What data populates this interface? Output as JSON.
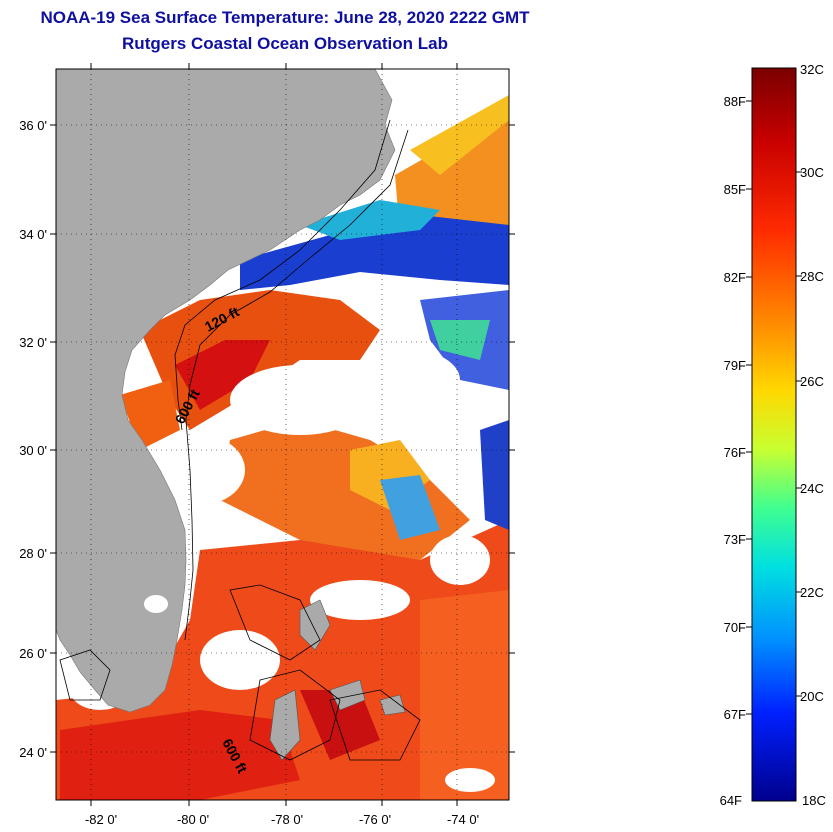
{
  "header": {
    "title": "NOAA-19 Sea Surface Temperature:  June 28, 2020 2222 GMT",
    "subtitle": "Rutgers Coastal Ocean Observation Lab"
  },
  "map": {
    "lat_labels": [
      "36 0'",
      "34 0'",
      "32 0'",
      "30 0'",
      "28 0'",
      "26 0'",
      "24 0'"
    ],
    "lon_labels": [
      "-82 0'",
      "-80 0'",
      "-78 0'",
      "-76 0'",
      "-74 0'"
    ],
    "contour_labels": [
      "120 ft",
      "600 ft",
      "600 ft"
    ],
    "colors": {
      "land": "#aaaaaa",
      "cloud": "#ffffff",
      "warm": "#e83010",
      "cool": "#1030c0"
    }
  },
  "colorbar": {
    "celsius": [
      "32C",
      "30C",
      "28C",
      "26C",
      "24C",
      "22C",
      "20C",
      "18C"
    ],
    "fahrenheit": [
      "88F",
      "85F",
      "82F",
      "79F",
      "76F",
      "73F",
      "70F",
      "67F",
      "64F"
    ]
  }
}
